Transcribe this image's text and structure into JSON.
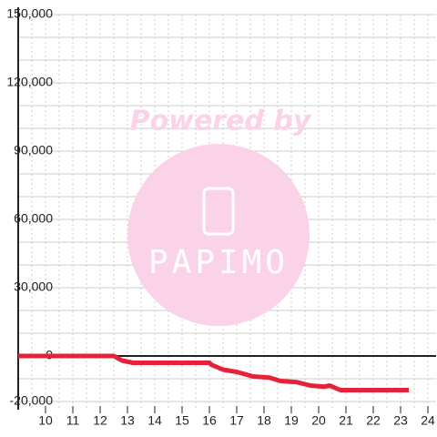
{
  "chart_data": {
    "type": "line",
    "watermark": {
      "title": "Powered by",
      "brand": "PAPIMO"
    },
    "x": [
      9,
      12.5,
      12.8,
      13.2,
      16,
      16.1,
      16.5,
      17,
      17.6,
      18.2,
      18.6,
      19.2,
      19.7,
      20.2,
      20.4,
      20.8,
      23.3
    ],
    "series": [
      {
        "color": "#e8213a",
        "values": [
          0,
          0,
          -2000,
          -3000,
          -3000,
          -4000,
          -6000,
          -7000,
          -9000,
          -9500,
          -11000,
          -11500,
          -13000,
          -13500,
          -13000,
          -15000,
          -15000
        ]
      }
    ],
    "xlim": [
      9,
      24.3
    ],
    "ylim": [
      -20000,
      150000
    ],
    "xticks": [
      10,
      11,
      12,
      13,
      14,
      15,
      16,
      17,
      18,
      19,
      20,
      21,
      22,
      23,
      24
    ],
    "yticks": [
      {
        "value": -20000,
        "label": "-20,000"
      },
      0,
      {
        "value": 30000,
        "label": "30,000"
      },
      {
        "value": 60000,
        "label": "60,000"
      },
      {
        "value": 90000,
        "label": "90,000"
      },
      {
        "value": 120000,
        "label": "120,000"
      },
      {
        "value": 150000,
        "label": "150,000"
      }
    ],
    "y_minor_ticks": [
      -10000,
      10000,
      20000,
      40000,
      50000,
      70000,
      80000,
      100000,
      110000,
      130000,
      140000
    ],
    "x_minor_ticks": [
      9.5,
      10.5,
      11.5,
      12.5,
      13.5,
      14.5,
      15.5,
      16.5,
      17.5,
      18.5,
      19.5,
      20.5,
      21.5,
      22.5,
      23.5
    ],
    "grid": true
  }
}
